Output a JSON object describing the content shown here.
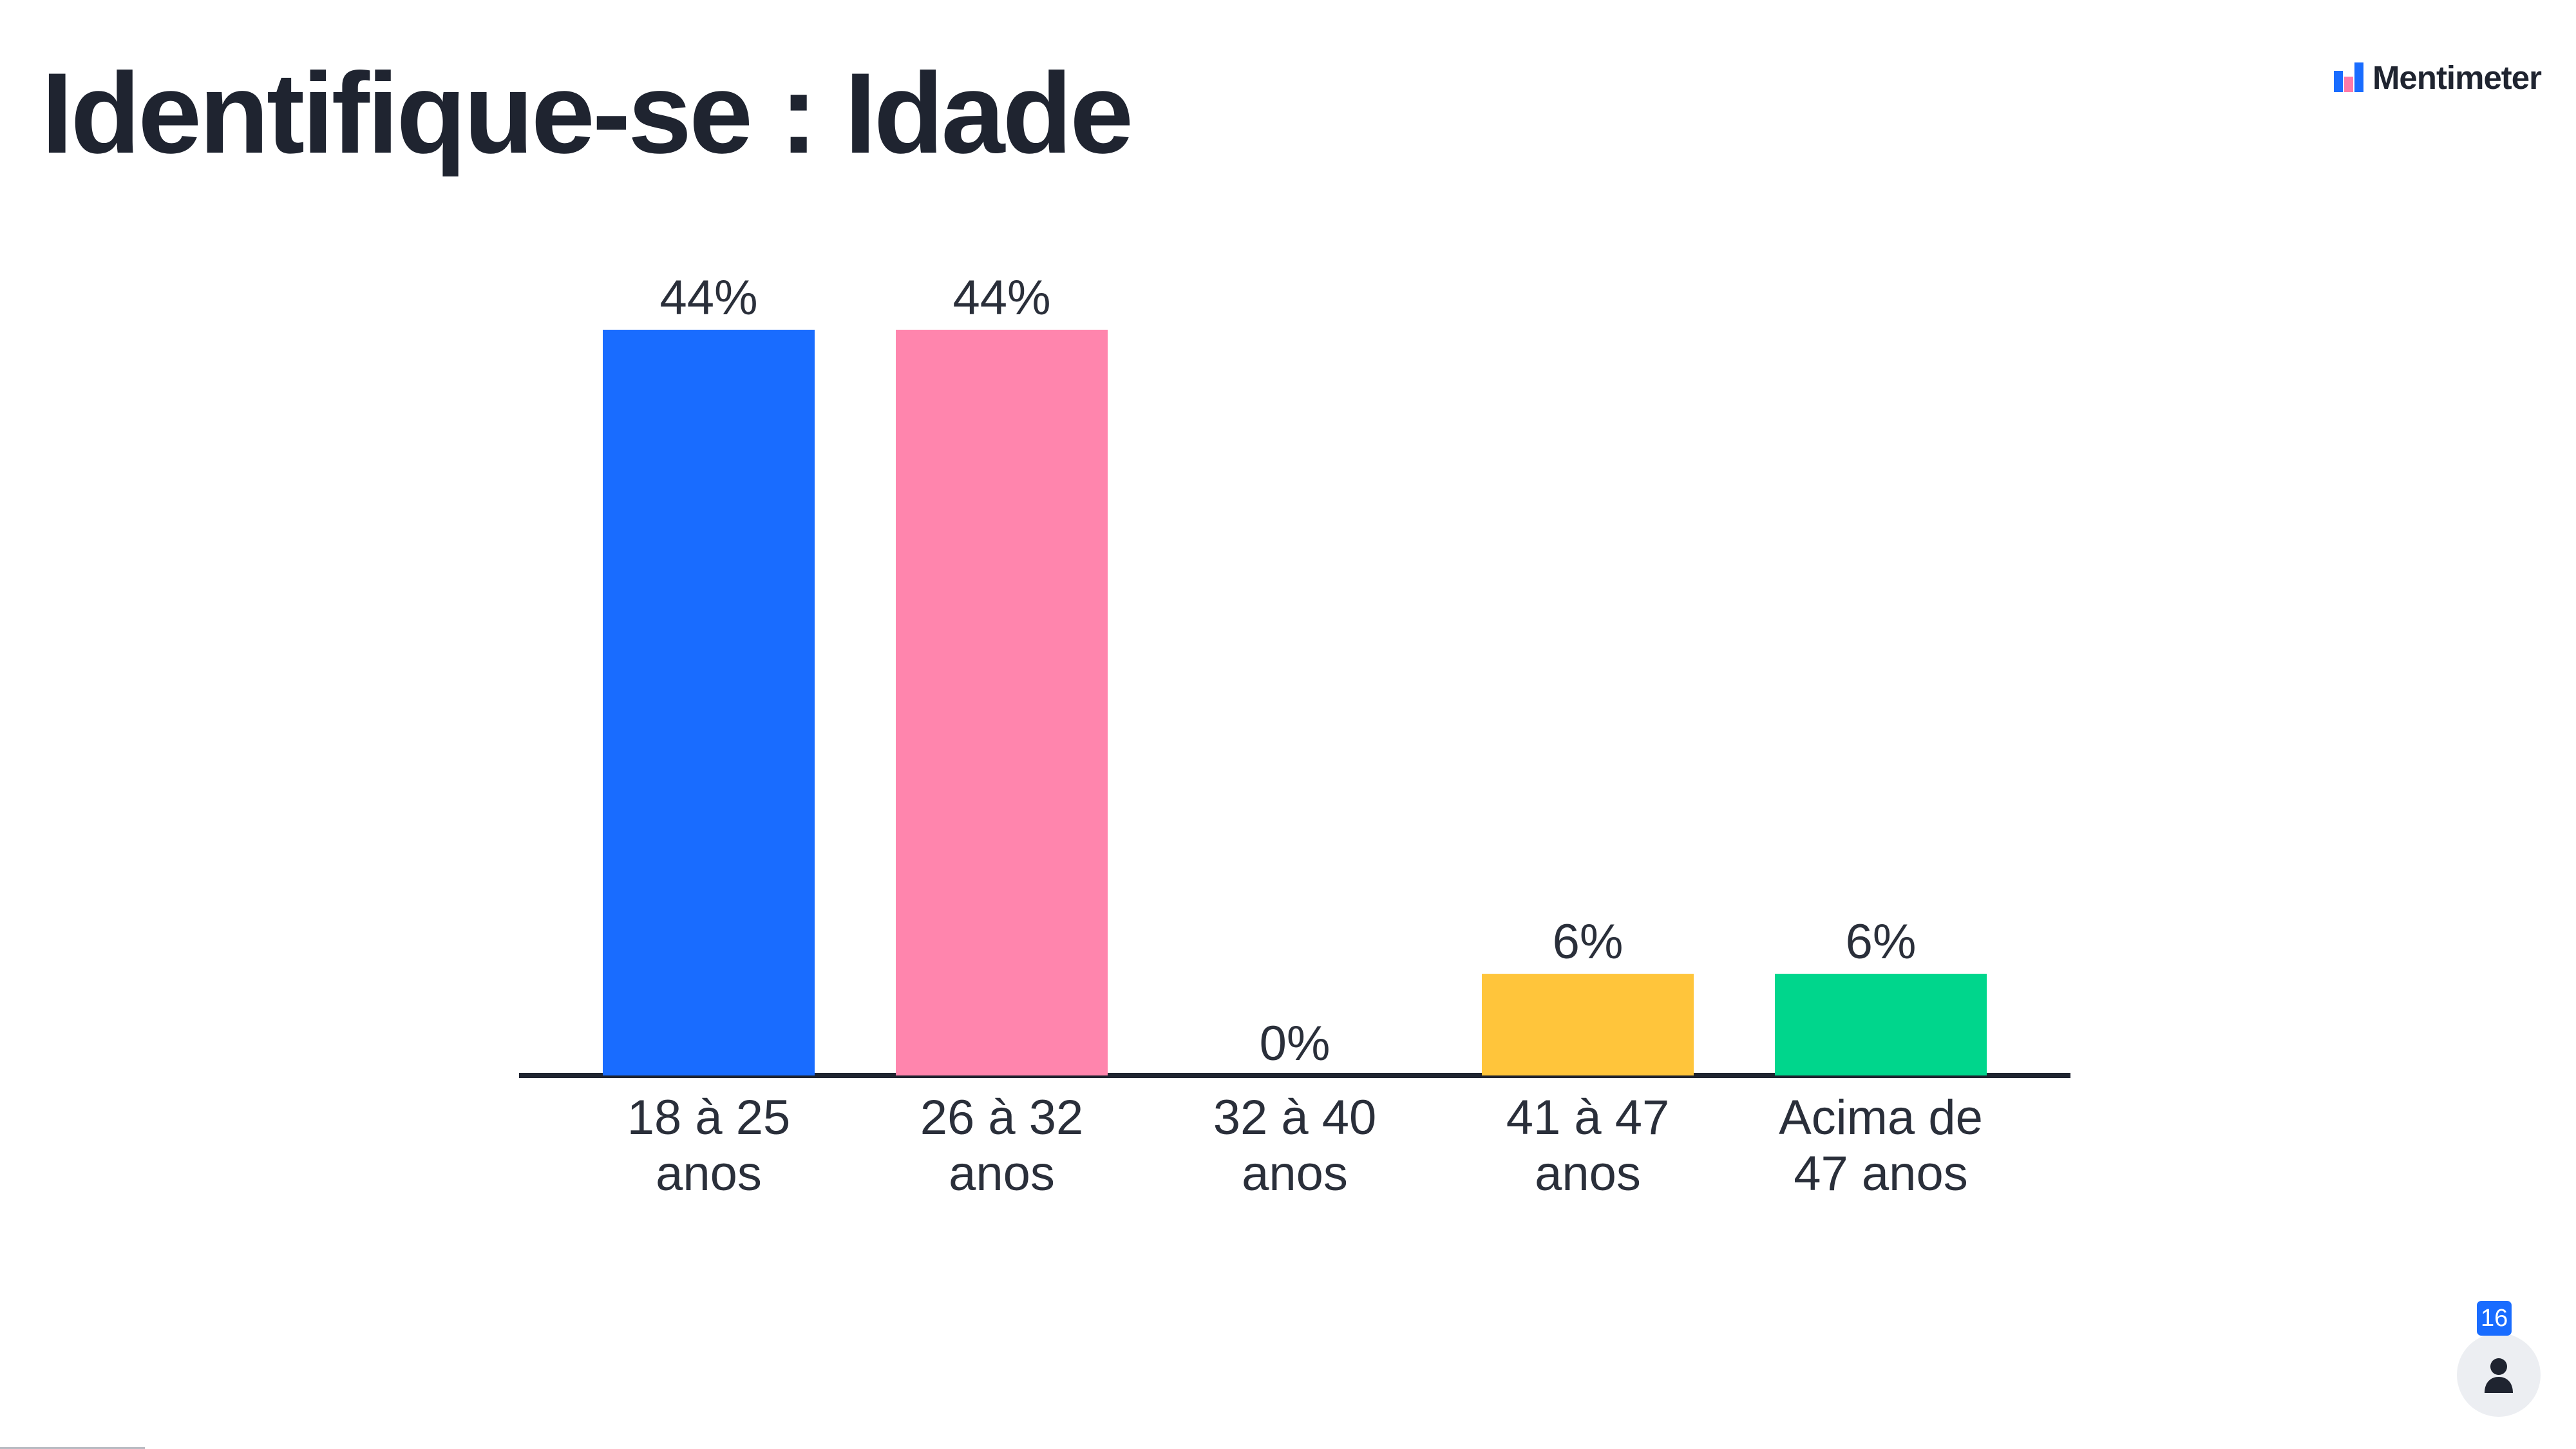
{
  "slide": {
    "title": "Identifique-se : Idade"
  },
  "brand": {
    "name": "Mentimeter",
    "logo_icon": "mentimeter-logo-icon",
    "logo_colors": [
      "#196cff",
      "#ff7aa8"
    ]
  },
  "participants": {
    "count": "16",
    "icon": "user-icon",
    "badge_color": "#196cff"
  },
  "chart_data": {
    "type": "bar",
    "title": "Identifique-se : Idade",
    "xlabel": "",
    "ylabel": "",
    "ylim": [
      0,
      44
    ],
    "grid": false,
    "legend": "none",
    "categories": [
      [
        "18 à 25",
        "anos"
      ],
      [
        "26 à 32",
        "anos"
      ],
      [
        "32 à 40",
        "anos"
      ],
      [
        "41 à 47",
        "anos"
      ],
      [
        "Acima de",
        "47 anos"
      ]
    ],
    "values": [
      44,
      44,
      0,
      6,
      6
    ],
    "value_labels": [
      "44%",
      "44%",
      "0%",
      "6%",
      "6%"
    ],
    "colors": [
      "#196cff",
      "#ff85ad",
      "#2b2f3a",
      "#ffc53b",
      "#00d68c"
    ],
    "axis_color": "#1f2430",
    "text_color": "#2a2f3a"
  }
}
